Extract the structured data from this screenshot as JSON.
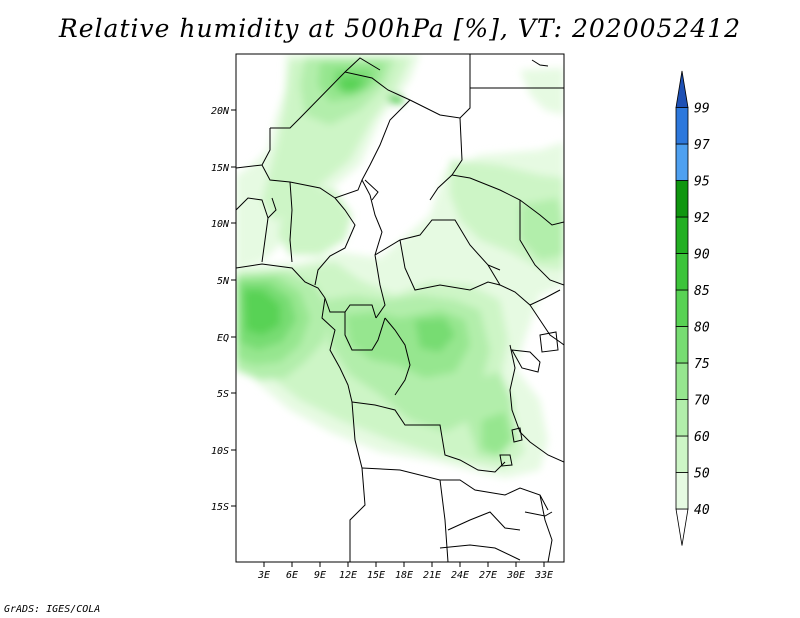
{
  "title": "Relative humidity at 500hPa [%], VT: 2020052412",
  "credit": "GrADS: IGES/COLA",
  "map": {
    "variable": "Relative humidity at 500hPa",
    "units": "%",
    "valid_time": "2020052412",
    "lat_labels": [
      "20N",
      "15N",
      "10N",
      "5N",
      "EQ",
      "5S",
      "10S",
      "15S"
    ],
    "lon_labels": [
      "3E",
      "6E",
      "9E",
      "12E",
      "15E",
      "18E",
      "21E",
      "24E",
      "27E",
      "30E",
      "33E"
    ]
  },
  "colorbar": {
    "levels": [
      "40",
      "50",
      "60",
      "70",
      "75",
      "80",
      "85",
      "90",
      "92",
      "95",
      "97",
      "99"
    ],
    "colors": [
      "#ffffff",
      "#e6fae2",
      "#cdf5c6",
      "#b2eeab",
      "#96e68f",
      "#77dc72",
      "#58d254",
      "#3cc43a",
      "#22af22",
      "#0f960f",
      "#4ea0f0",
      "#2d78dc",
      "#1e50b4"
    ]
  }
}
